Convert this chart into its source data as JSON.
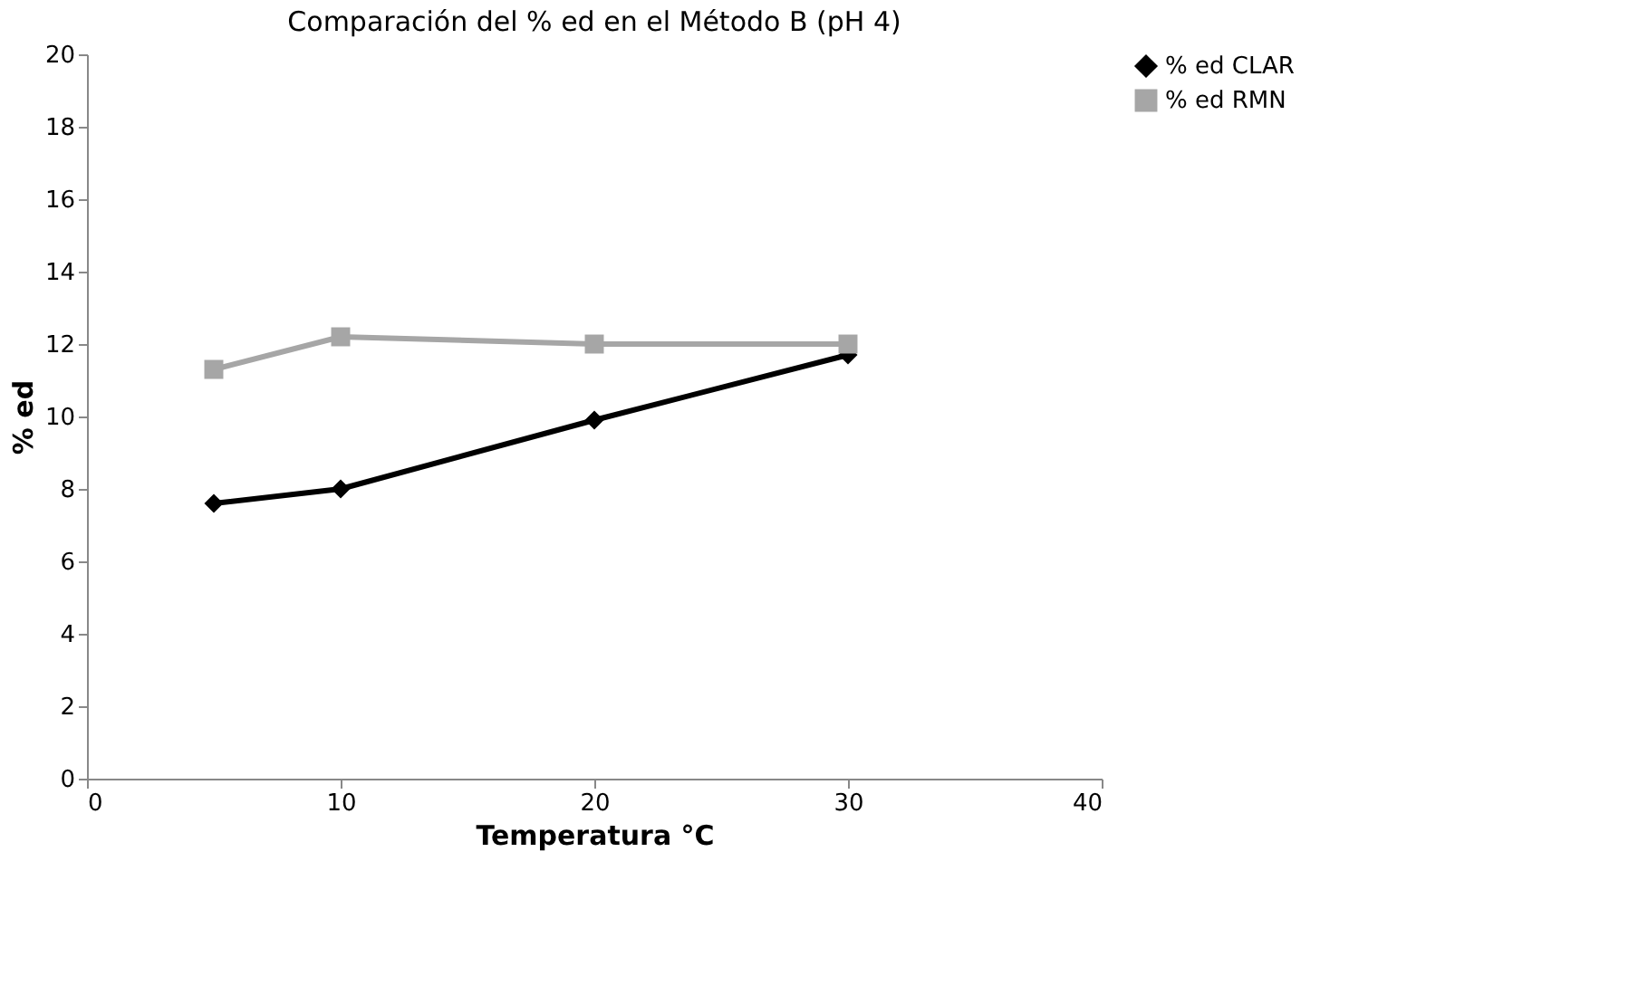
{
  "chart_data": {
    "type": "line",
    "title": "Comparación del % ed en el Método B (pH 4)",
    "xlabel": "Temperatura °C",
    "ylabel": "% ed",
    "x": [
      5,
      10,
      20,
      30
    ],
    "series": [
      {
        "name": "% ed CLAR",
        "color": "#000000",
        "marker": "diamond",
        "values": [
          7.6,
          8.0,
          9.9,
          11.7
        ]
      },
      {
        "name": "% ed RMN",
        "color": "#a6a6a6",
        "marker": "square",
        "values": [
          11.3,
          12.2,
          12.0,
          12.0
        ]
      }
    ],
    "xlim": [
      0,
      40
    ],
    "xticks": [
      0,
      10,
      20,
      30,
      40
    ],
    "ylim": [
      0,
      20
    ],
    "yticks": [
      0,
      2,
      4,
      6,
      8,
      10,
      12,
      14,
      16,
      18,
      20
    ],
    "grid": false,
    "legend": "right",
    "line_style": "solid"
  }
}
